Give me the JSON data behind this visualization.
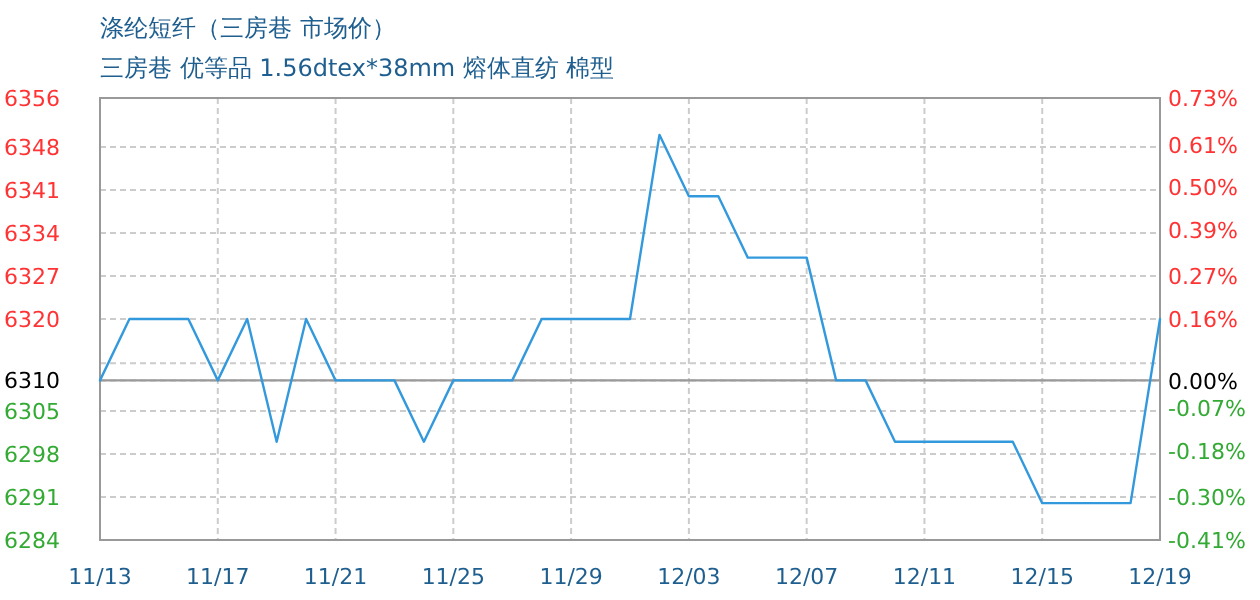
{
  "chart_data": {
    "type": "line",
    "title": "涤纶短纤（三房巷 市场价）",
    "subtitle": "三房巷 优等品 1.56dtex*38mm 熔体直纺 棉型",
    "x": [
      "--11-13",
      "--11-14",
      "--11-15",
      "--11-16",
      "--11-17",
      "--11-18",
      "--11-19",
      "--11-20",
      "--11-21",
      "--11-22",
      "--11-23",
      "--11-24",
      "--11-25",
      "--11-26",
      "--11-27",
      "--11-28",
      "--11-29",
      "--11-30",
      "--12-01",
      "--12-02",
      "--12-03",
      "--12-04",
      "--12-05",
      "--12-06",
      "--12-07",
      "--12-08",
      "--12-09",
      "--12-10",
      "--12-11",
      "--12-12",
      "--12-13",
      "--12-14",
      "--12-15",
      "--12-16",
      "--12-17",
      "--12-18",
      "--12-19"
    ],
    "values": [
      6310,
      6320,
      6320,
      6320,
      6310,
      6320,
      6300,
      6320,
      6310,
      6310,
      6310,
      6300,
      6310,
      6310,
      6310,
      6320,
      6320,
      6320,
      6320,
      6350,
      6340,
      6340,
      6330,
      6330,
      6330,
      6310,
      6310,
      6300,
      6300,
      6300,
      6300,
      6300,
      6290,
      6290,
      6290,
      6290,
      6320
    ],
    "color": "#3399dd",
    "xlim": [
      "--11-13",
      "--12-19"
    ],
    "xticks": [
      {
        "value": "--11-13",
        "label": "11/13"
      },
      {
        "value": "--11-17",
        "label": "11/17"
      },
      {
        "value": "--11-21",
        "label": "11/21"
      },
      {
        "value": "--11-25",
        "label": "11/25"
      },
      {
        "value": "--11-29",
        "label": "11/29"
      },
      {
        "value": "--12-03",
        "label": "12/03"
      },
      {
        "value": "--12-07",
        "label": "12/07"
      },
      {
        "value": "--12-11",
        "label": "12/11"
      },
      {
        "value": "--12-15",
        "label": "12/15"
      },
      {
        "value": "--12-19",
        "label": "12/19"
      }
    ],
    "ylim": [
      6284,
      6356
    ],
    "yticks": [
      6356,
      6348,
      6341,
      6334,
      6327,
      6320,
      {
        "value": 6312.8,
        "label": null
      },
      6310,
      6305,
      6298,
      6291,
      6284
    ],
    "y2lim": [
      -0.41,
      0.73
    ],
    "y2ticks": [
      {
        "value": 0.73,
        "label": "0.73%"
      },
      {
        "value": 0.61,
        "label": "0.61%"
      },
      {
        "value": 0.5,
        "label": "0.50%"
      },
      {
        "value": 0.39,
        "label": "0.39%"
      },
      {
        "value": 0.27,
        "label": "0.27%"
      },
      {
        "value": 0.16,
        "label": "0.16%"
      },
      {
        "value": 0,
        "label": "0.00%"
      },
      {
        "value": -0.07,
        "label": "-0.07%"
      },
      {
        "value": -0.18,
        "label": "-0.18%"
      },
      {
        "value": -0.3,
        "label": "-0.30%"
      },
      {
        "value": -0.41,
        "label": "-0.41%"
      }
    ],
    "grid": true,
    "ref_lines": [
      {
        "axis": "y",
        "value": 6310,
        "color": "#999999"
      }
    ]
  }
}
